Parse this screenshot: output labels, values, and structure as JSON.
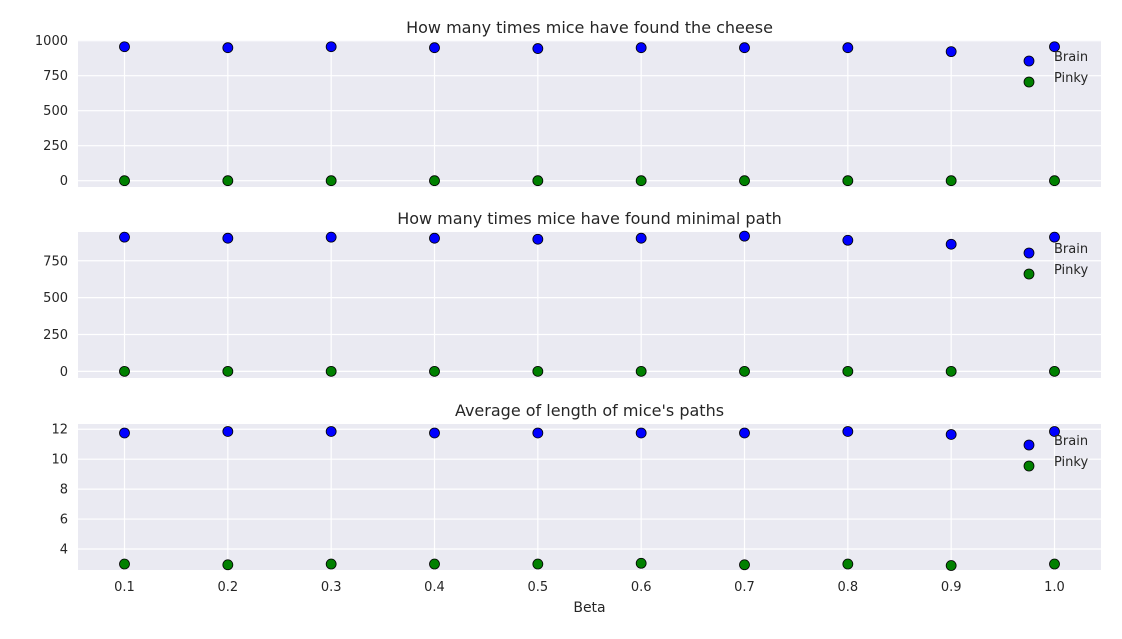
{
  "colors": {
    "background": "#eaeaf2",
    "grid": "#ffffff",
    "brain": "#0000ff",
    "pinky": "#008000",
    "marker_edge": "#000000",
    "text": "#262626"
  },
  "chart_data": [
    {
      "type": "scatter",
      "title": "How many times mice have found the cheese",
      "xlabel": "",
      "ylabel": "",
      "x": [
        0.1,
        0.2,
        0.3,
        0.4,
        0.5,
        0.6,
        0.7,
        0.8,
        0.9,
        1.0
      ],
      "xlim": [
        0.055,
        1.045
      ],
      "ylim": [
        -45,
        1005
      ],
      "yticks": [
        0,
        250,
        500,
        750,
        1000
      ],
      "xticks_visible": false,
      "legend": "right",
      "series": [
        {
          "name": "Brain",
          "color": "#0000ff",
          "values": [
            957,
            950,
            957,
            950,
            944,
            950,
            950,
            950,
            922,
            957
          ]
        },
        {
          "name": "Pinky",
          "color": "#008000",
          "values": [
            0,
            0,
            0,
            0,
            0,
            0,
            0,
            0,
            0,
            0
          ]
        }
      ]
    },
    {
      "type": "scatter",
      "title": "How many times mice have found minimal path",
      "xlabel": "",
      "ylabel": "",
      "x": [
        0.1,
        0.2,
        0.3,
        0.4,
        0.5,
        0.6,
        0.7,
        0.8,
        0.9,
        1.0
      ],
      "xlim": [
        0.055,
        1.045
      ],
      "ylim": [
        -45,
        945
      ],
      "yticks": [
        0,
        250,
        500,
        750
      ],
      "xticks_visible": false,
      "legend": "right",
      "series": [
        {
          "name": "Brain",
          "color": "#0000ff",
          "values": [
            910,
            903,
            910,
            903,
            896,
            903,
            917,
            889,
            862,
            910
          ]
        },
        {
          "name": "Pinky",
          "color": "#008000",
          "values": [
            0,
            0,
            0,
            0,
            0,
            0,
            0,
            0,
            0,
            0
          ]
        }
      ]
    },
    {
      "type": "scatter",
      "title": "Average of length of mice's paths",
      "xlabel": "Beta",
      "ylabel": "",
      "x": [
        0.1,
        0.2,
        0.3,
        0.4,
        0.5,
        0.6,
        0.7,
        0.8,
        0.9,
        1.0
      ],
      "xlim": [
        0.055,
        1.045
      ],
      "ylim": [
        2.6,
        12.35
      ],
      "yticks": [
        4,
        6,
        8,
        10,
        12
      ],
      "xticks": [
        0.1,
        0.2,
        0.3,
        0.4,
        0.5,
        0.6,
        0.7,
        0.8,
        0.9,
        1.0
      ],
      "xtick_labels": [
        "0.1",
        "0.2",
        "0.3",
        "0.4",
        "0.5",
        "0.6",
        "0.7",
        "0.8",
        "0.9",
        "1.0"
      ],
      "xticks_visible": true,
      "legend": "right",
      "series": [
        {
          "name": "Brain",
          "color": "#0000ff",
          "values": [
            11.75,
            11.85,
            11.85,
            11.75,
            11.75,
            11.75,
            11.75,
            11.85,
            11.65,
            11.85
          ]
        },
        {
          "name": "Pinky",
          "color": "#008000",
          "values": [
            3.0,
            2.95,
            3.0,
            3.0,
            3.0,
            3.05,
            2.95,
            3.0,
            2.9,
            3.0
          ]
        }
      ]
    }
  ]
}
